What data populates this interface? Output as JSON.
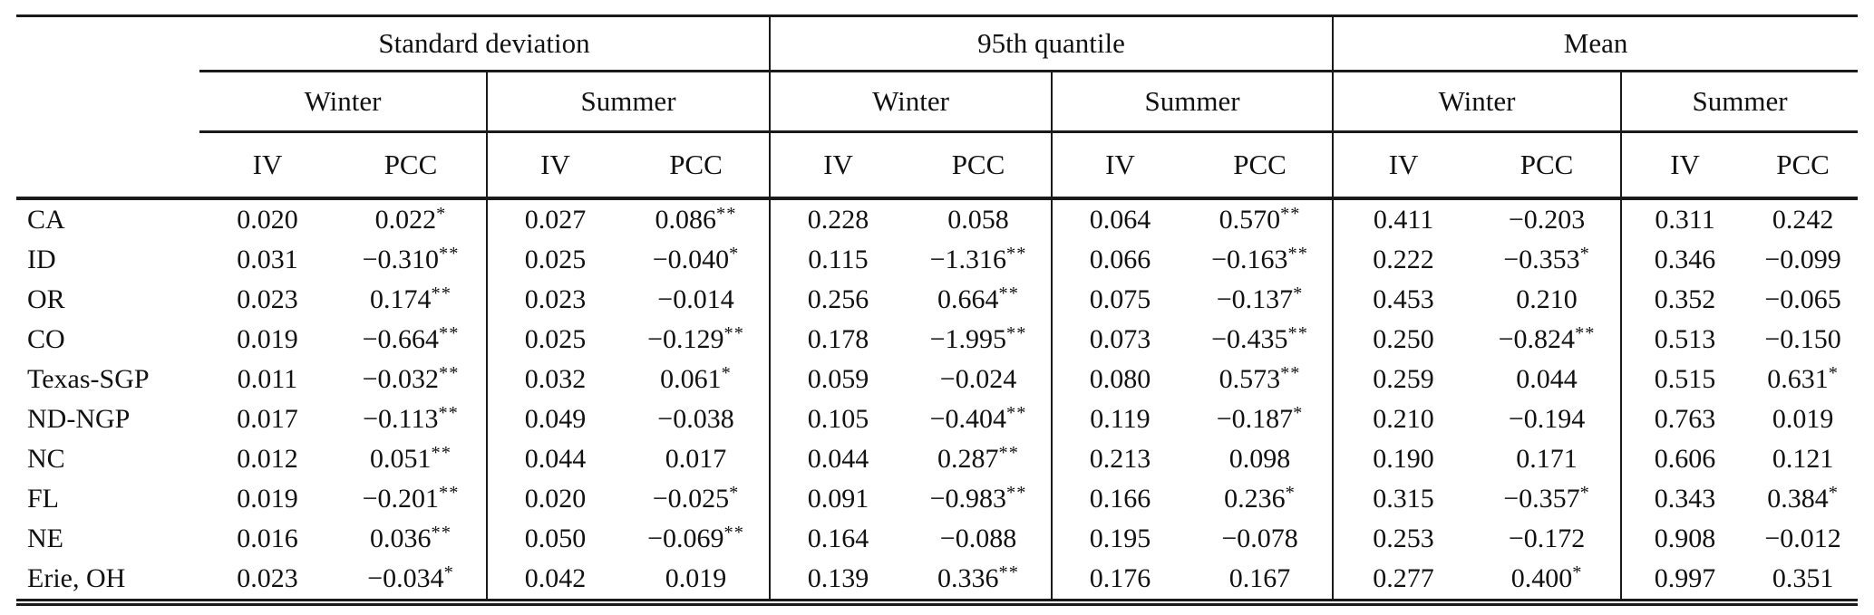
{
  "table": {
    "groups": [
      {
        "label": "Standard deviation"
      },
      {
        "label": "95th quantile"
      },
      {
        "label": "Mean"
      }
    ],
    "season_labels": [
      "Winter",
      "Summer",
      "Winter",
      "Summer",
      "Winter",
      "Summer"
    ],
    "col_labels": [
      "IV",
      "PCC",
      "IV",
      "PCC",
      "IV",
      "PCC",
      "IV",
      "PCC",
      "IV",
      "PCC",
      "IV",
      "PCC"
    ],
    "rows": [
      {
        "label": "CA",
        "values": [
          "0.020",
          "0.022*",
          "0.027",
          "0.086**",
          "0.228",
          "0.058",
          "0.064",
          "0.570**",
          "0.411",
          "−0.203",
          "0.311",
          "0.242"
        ]
      },
      {
        "label": "ID",
        "values": [
          "0.031",
          "−0.310**",
          "0.025",
          "−0.040*",
          "0.115",
          "−1.316**",
          "0.066",
          "−0.163**",
          "0.222",
          "−0.353*",
          "0.346",
          "−0.099"
        ]
      },
      {
        "label": "OR",
        "values": [
          "0.023",
          "0.174**",
          "0.023",
          "−0.014",
          "0.256",
          "0.664**",
          "0.075",
          "−0.137*",
          "0.453",
          "0.210",
          "0.352",
          "−0.065"
        ]
      },
      {
        "label": "CO",
        "values": [
          "0.019",
          "−0.664**",
          "0.025",
          "−0.129**",
          "0.178",
          "−1.995**",
          "0.073",
          "−0.435**",
          "0.250",
          "−0.824**",
          "0.513",
          "−0.150"
        ]
      },
      {
        "label": "Texas-SGP",
        "values": [
          "0.011",
          "−0.032**",
          "0.032",
          "0.061*",
          "0.059",
          "−0.024",
          "0.080",
          "0.573**",
          "0.259",
          "0.044",
          "0.515",
          "0.631*"
        ]
      },
      {
        "label": "ND-NGP",
        "values": [
          "0.017",
          "−0.113**",
          "0.049",
          "−0.038",
          "0.105",
          "−0.404**",
          "0.119",
          "−0.187*",
          "0.210",
          "−0.194",
          "0.763",
          "0.019"
        ]
      },
      {
        "label": "NC",
        "values": [
          "0.012",
          "0.051**",
          "0.044",
          "0.017",
          "0.044",
          "0.287**",
          "0.213",
          "0.098",
          "0.190",
          "0.171",
          "0.606",
          "0.121"
        ]
      },
      {
        "label": "FL",
        "values": [
          "0.019",
          "−0.201**",
          "0.020",
          "−0.025*",
          "0.091",
          "−0.983**",
          "0.166",
          "0.236*",
          "0.315",
          "−0.357*",
          "0.343",
          "0.384*"
        ]
      },
      {
        "label": "NE",
        "values": [
          "0.016",
          "0.036**",
          "0.050",
          "−0.069**",
          "0.164",
          "−0.088",
          "0.195",
          "−0.078",
          "0.253",
          "−0.172",
          "0.908",
          "−0.012"
        ]
      },
      {
        "label": "Erie, OH",
        "values": [
          "0.023",
          "−0.034*",
          "0.042",
          "0.019",
          "0.139",
          "0.336**",
          "0.176",
          "0.167",
          "0.277",
          "0.400*",
          "0.997",
          "0.351"
        ]
      }
    ]
  }
}
